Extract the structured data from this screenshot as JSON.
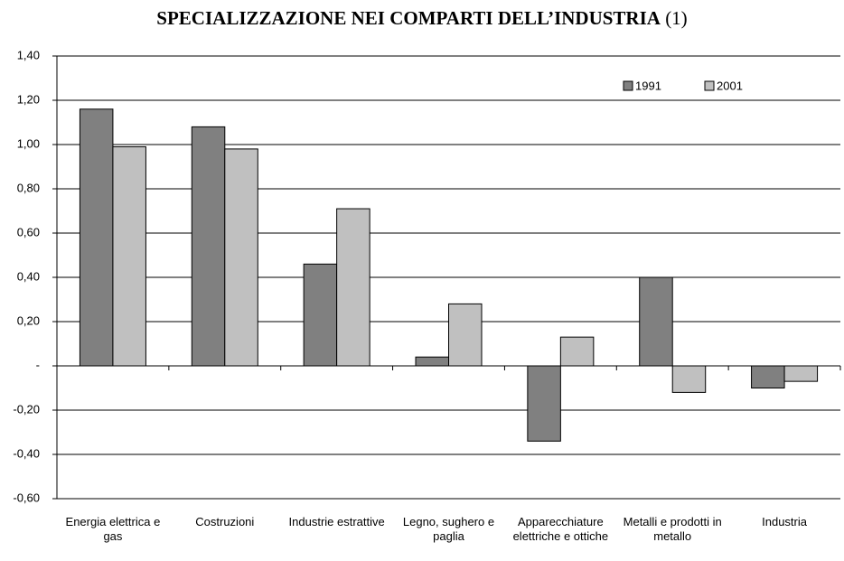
{
  "chart_data": {
    "type": "bar",
    "title": "SPECIALIZZAZIONE NEI COMPARTI DELL’INDUSTRIA",
    "title_note": "(1)",
    "categories": [
      "Energia elettrica e gas",
      "Costruzioni",
      "Industrie estrattive",
      "Legno, sughero e paglia",
      "Apparecchiature elettriche e ottiche",
      "Metalli e prodotti in metallo",
      "Industria"
    ],
    "series": [
      {
        "name": "1991",
        "color": "#808080",
        "values": [
          1.16,
          1.08,
          0.46,
          0.04,
          -0.34,
          0.4,
          -0.1
        ]
      },
      {
        "name": "2001",
        "color": "#c0c0c0",
        "values": [
          0.99,
          0.98,
          0.71,
          0.28,
          0.13,
          -0.12,
          -0.07
        ]
      }
    ],
    "ylim": [
      -0.6,
      1.4
    ],
    "yticks": [
      {
        "value": -0.6,
        "label": "-0,60"
      },
      {
        "value": -0.4,
        "label": "-0,40"
      },
      {
        "value": -0.2,
        "label": "-0,20"
      },
      {
        "value": 0,
        "label": "-"
      },
      {
        "value": 0.2,
        "label": "0,20"
      },
      {
        "value": 0.4,
        "label": "0,40"
      },
      {
        "value": 0.6,
        "label": "0,60"
      },
      {
        "value": 0.8,
        "label": "0,80"
      },
      {
        "value": 1.0,
        "label": "1,00"
      },
      {
        "value": 1.2,
        "label": "1,20"
      },
      {
        "value": 1.4,
        "label": "1,40"
      }
    ],
    "grid": true,
    "legend": "top-right"
  }
}
